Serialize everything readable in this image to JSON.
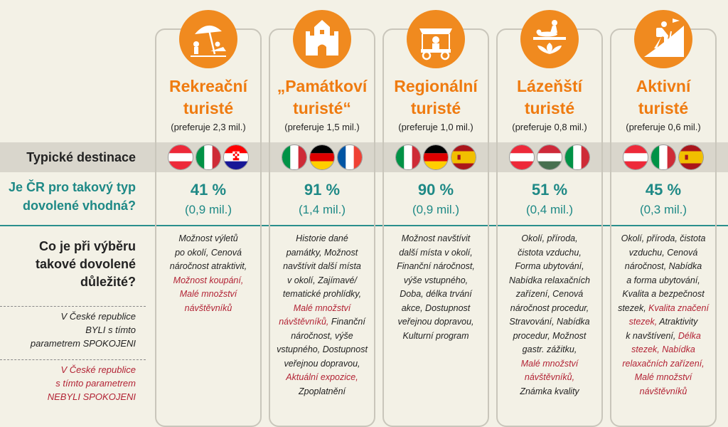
{
  "labels": {
    "destinations": "Typické destinace",
    "question_line1": "Je ČR pro takový typ",
    "question_line2": "dovolené vhodná?",
    "important_line1": "Co je při výběru",
    "important_line2": "takové dovolené",
    "important_line3": "důležité?",
    "byli_line1": "V České republice",
    "byli_line2": "BYLI s tímto",
    "byli_line3": "parametrem SPOKOJENI",
    "nebyli_line1": "V České republice",
    "nebyli_line2": "s tímto parametrem",
    "nebyli_line3": "NEBYLI SPOKOJENI"
  },
  "colors": {
    "accent": "#ef7b10",
    "teal": "#1e8986",
    "red": "#b22234"
  },
  "columns": [
    {
      "icon": "beach-umbrella-icon",
      "title1": "Rekreační",
      "title2": "turisté",
      "prefer": "(preferuje 2,3 mil.)",
      "flags": [
        "austria-flag-icon",
        "italy-flag-icon",
        "croatia-flag-icon"
      ],
      "pct": "41 %",
      "mil": "(0,9 mil.)",
      "desc": [
        {
          "t": "Možnost výletů",
          "r": false
        },
        {
          "t": "po okolí, Cenová",
          "r": false
        },
        {
          "t": "náročnost atraktivit,",
          "r": false
        },
        {
          "t": "Možnost koupání,",
          "r": true
        },
        {
          "t": "Malé množství",
          "r": true
        },
        {
          "t": "návštěvníků",
          "r": true
        }
      ]
    },
    {
      "icon": "castle-icon",
      "title1": "„Památkoví",
      "title2": "turisté“",
      "prefer": "(preferuje 1,5 mil.)",
      "flags": [
        "italy-flag-icon",
        "germany-flag-icon",
        "france-flag-icon"
      ],
      "pct": "91 %",
      "mil": "(1,4 mil.)",
      "desc": [
        {
          "t": "Historie dané",
          "r": false
        },
        {
          "t": "památky, Možnost",
          "r": false
        },
        {
          "t": "navštívit další místa",
          "r": false
        },
        {
          "t": "v okolí, Zajímavé/",
          "r": false
        },
        {
          "t": "tematické prohlídky,",
          "r": false
        },
        {
          "t": "Malé množství",
          "r": true
        },
        {
          "t": "návštěvníků,",
          "r": true,
          "tail": " Finanční"
        },
        {
          "t": "náročnost, výše",
          "r": false
        },
        {
          "t": "vstupného, Dostupnost",
          "r": false
        },
        {
          "t": "veřejnou dopravou,",
          "r": false
        },
        {
          "t": "Aktuální expozice,",
          "r": true
        },
        {
          "t": "Zpoplatnění",
          "r": false
        }
      ]
    },
    {
      "icon": "food-cart-icon",
      "title1": "Regionální",
      "title2": "turisté",
      "prefer": "(preferuje 1,0 mil.)",
      "flags": [
        "italy-flag-icon",
        "germany-flag-icon",
        "spain-flag-icon"
      ],
      "pct": "90 %",
      "mil": "(0,9 mil.)",
      "desc": [
        {
          "t": "Možnost navštívit",
          "r": false
        },
        {
          "t": "další místa v okolí,",
          "r": false
        },
        {
          "t": "Finanční náročnost,",
          "r": false
        },
        {
          "t": "výše vstupného,",
          "r": false
        },
        {
          "t": "Doba, délka trvání",
          "r": false
        },
        {
          "t": "akce, Dostupnost",
          "r": false
        },
        {
          "t": "veřejnou dopravou,",
          "r": false
        },
        {
          "t": "Kulturní program",
          "r": false
        }
      ]
    },
    {
      "icon": "massage-lotus-icon",
      "title1": "Lázeňští",
      "title2": "turisté",
      "prefer": "(preferuje 0,8 mil.)",
      "flags": [
        "austria-flag-icon",
        "hungary-flag-icon",
        "italy-flag-icon"
      ],
      "pct": "51 %",
      "mil": "(0,4 mil.)",
      "desc": [
        {
          "t": "Okolí, příroda,",
          "r": false
        },
        {
          "t": "čistota vzduchu,",
          "r": false
        },
        {
          "t": "Forma ubytování,",
          "r": false
        },
        {
          "t": "Nabídka relaxačních",
          "r": false
        },
        {
          "t": "zařízení, Cenová",
          "r": false
        },
        {
          "t": "náročnost procedur,",
          "r": false
        },
        {
          "t": "Stravování, Nabídka",
          "r": false
        },
        {
          "t": "procedur, Možnost",
          "r": false
        },
        {
          "t": "gastr. zážitku,",
          "r": false
        },
        {
          "t": "Malé množství",
          "r": true
        },
        {
          "t": "návštěvníků,",
          "r": true
        },
        {
          "t": "Známka kvality",
          "r": false
        }
      ]
    },
    {
      "icon": "hiker-icon",
      "title1": "Aktivní",
      "title2": "turisté",
      "prefer": "(preferuje 0,6 mil.)",
      "flags": [
        "austria-flag-icon",
        "italy-flag-icon",
        "spain-flag-icon"
      ],
      "pct": "45 %",
      "mil": "(0,3 mil.)",
      "desc": [
        {
          "t": "Okolí, příroda, čistota",
          "r": false
        },
        {
          "t": "vzduchu, Cenová",
          "r": false
        },
        {
          "t": "náročnost, Nabídka",
          "r": false
        },
        {
          "t": "a forma ubytování,",
          "r": false
        },
        {
          "t": "Kvalita a bezpečnost",
          "r": false
        },
        {
          "t": "stezek,",
          "r": false,
          "redtail": " Kvalita značení"
        },
        {
          "t": "stezek,",
          "r": true,
          "tail": " Atraktivity"
        },
        {
          "t": "k navštívení,",
          "r": false,
          "redtail": " Délka"
        },
        {
          "t": "stezek, Nabídka",
          "r": true
        },
        {
          "t": "relaxačních zařízení,",
          "r": true
        },
        {
          "t": "Malé množství",
          "r": true
        },
        {
          "t": "návštěvníků",
          "r": true
        }
      ]
    }
  ]
}
